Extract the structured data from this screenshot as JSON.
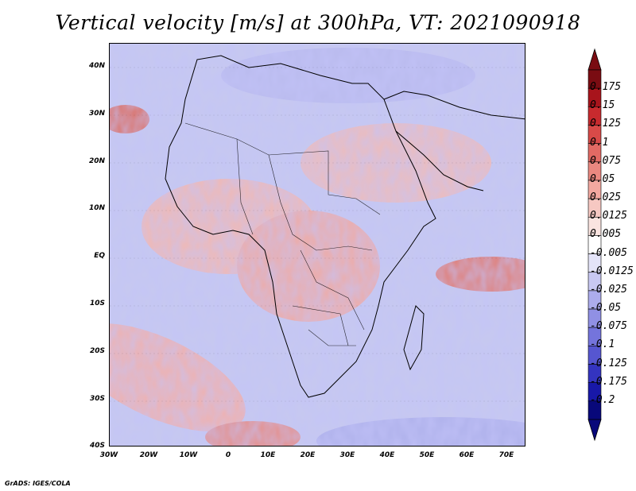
{
  "title": "Vertical velocity [m/s] at 300hPa, VT: 2021090918",
  "footer": "GrADS: IGES/COLA",
  "map": {
    "lat_labels": [
      "40N",
      "30N",
      "20N",
      "10N",
      "EQ",
      "10S",
      "20S",
      "30S",
      "40S"
    ],
    "lon_labels": [
      "30W",
      "20W",
      "10W",
      "0",
      "10E",
      "20E",
      "30E",
      "40E",
      "50E",
      "60E",
      "70E"
    ],
    "lat_range": [
      -40,
      45
    ],
    "lon_range": [
      -30,
      75
    ]
  },
  "colorbar": {
    "labels": [
      "0.175",
      "0.15",
      "0.125",
      "0.1",
      "0.075",
      "0.05",
      "0.025",
      "0.0125",
      "0.005",
      "-0.005",
      "-0.0125",
      "-0.025",
      "-0.05",
      "-0.075",
      "-0.1",
      "-0.125",
      "-0.175",
      "-0.2"
    ],
    "colors": [
      "#7a0c12",
      "#a8141c",
      "#c82a2e",
      "#d84a48",
      "#e26a64",
      "#ea8880",
      "#f2a8a0",
      "#f6c8c2",
      "#fae4e0",
      "#ffffff",
      "#e4e4f8",
      "#c8c8f2",
      "#acacec",
      "#9090e4",
      "#7474dc",
      "#5656d0",
      "#3434c0",
      "#1818a8",
      "#08087a"
    ]
  }
}
